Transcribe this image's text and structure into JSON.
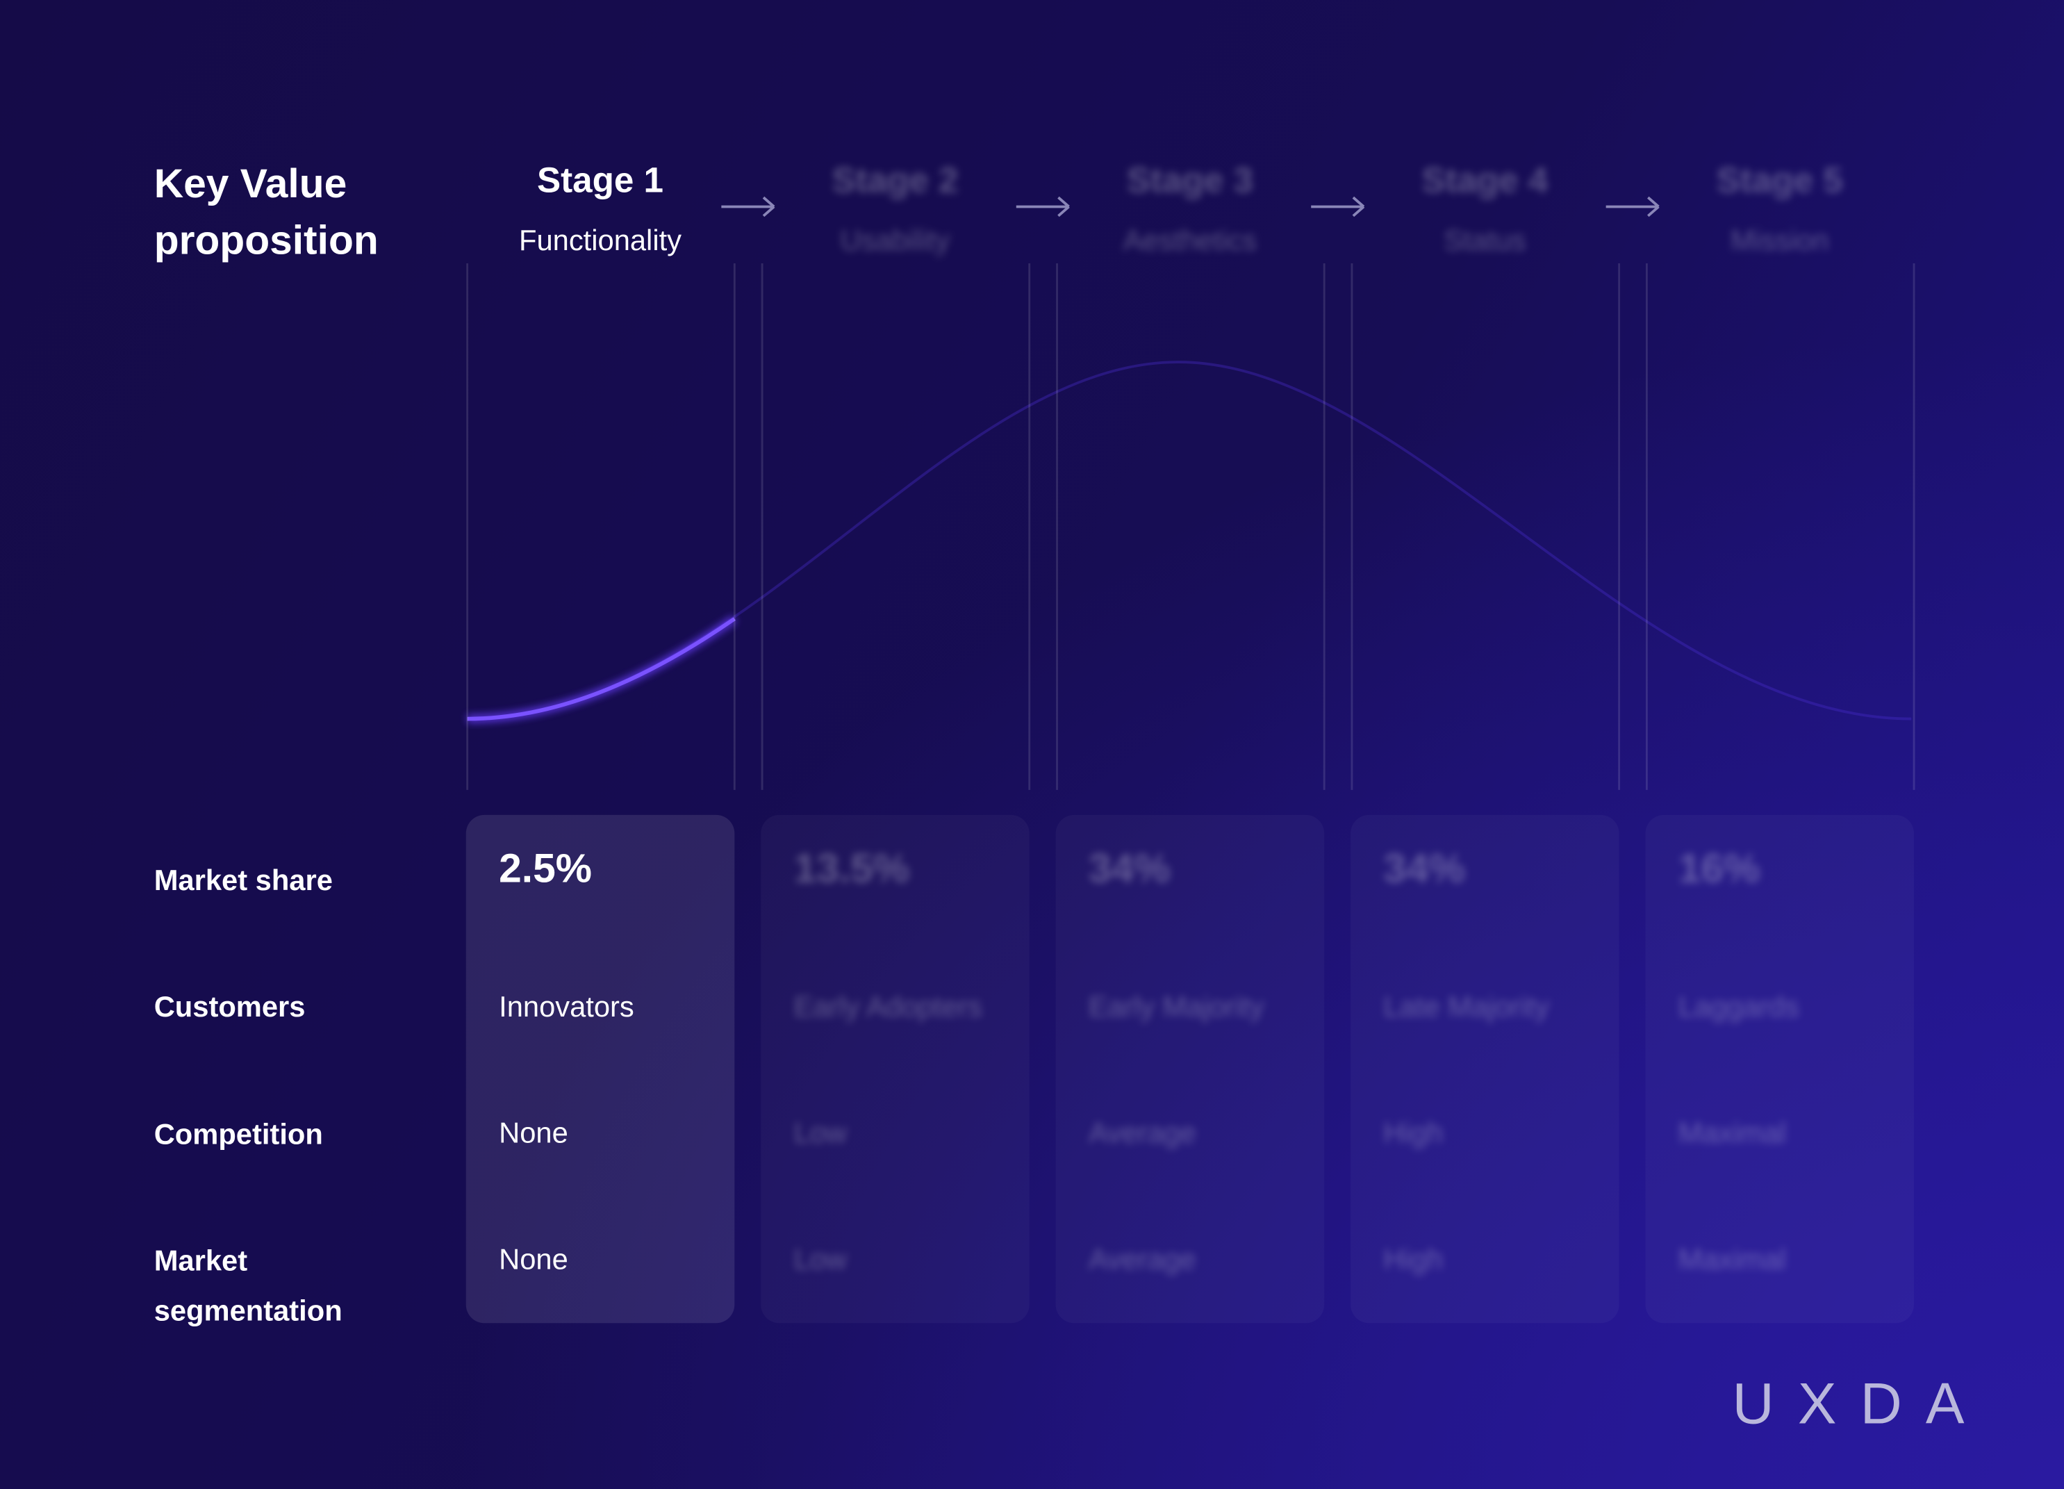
{
  "header": {
    "title": "Key Value proposition"
  },
  "row_labels": {
    "market_share": "Market share",
    "customers": "Customers",
    "competition": "Competition",
    "market_segmentation": "Market segmentation"
  },
  "stages": [
    {
      "name": "Stage 1",
      "value_proposition": "Functionality",
      "market_share": "2.5%",
      "customers": "Innovators",
      "competition": "None",
      "market_segmentation": "None"
    },
    {
      "name": "Stage 2",
      "value_proposition": "Usability",
      "market_share": "13.5%",
      "customers": "Early Adopters",
      "competition": "Low",
      "market_segmentation": "Low"
    },
    {
      "name": "Stage 3",
      "value_proposition": "Aesthetics",
      "market_share": "34%",
      "customers": "Early Majority",
      "competition": "Average",
      "market_segmentation": "Average"
    },
    {
      "name": "Stage 4",
      "value_proposition": "Status",
      "market_share": "34%",
      "customers": "Late Majority",
      "competition": "High",
      "market_segmentation": "High"
    },
    {
      "name": "Stage 5",
      "value_proposition": "Mission",
      "market_share": "16%",
      "customers": "Laggards",
      "competition": "Maximal",
      "market_segmentation": "Maximal"
    }
  ],
  "logo": "UXDA"
}
